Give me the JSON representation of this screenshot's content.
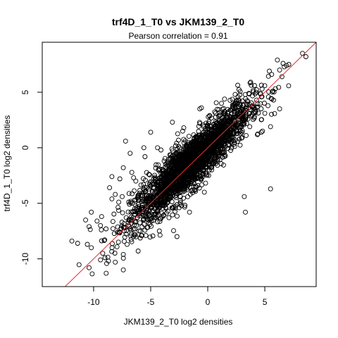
{
  "chart_data": {
    "type": "scatter",
    "title": "trf4D_1_T0 vs JKM139_2_T0",
    "subtitle": "Pearson correlation =  0.91",
    "xlabel": "JKM139_2_T0 log2 densities",
    "ylabel": "trf4D_1_T0 log2 densities",
    "xlim": [
      -14.5,
      9.5
    ],
    "ylim": [
      -12.5,
      9.5
    ],
    "x_ticks": [
      -10,
      -5,
      0,
      5
    ],
    "y_ticks": [
      -10,
      -5,
      0,
      5
    ],
    "x_tick_labels": [
      "-10",
      "-5",
      "0",
      "5"
    ],
    "y_tick_labels": [
      "-10",
      "-5",
      "0",
      "5"
    ],
    "grid": false,
    "legend": "none",
    "reference_line": {
      "slope": 1,
      "intercept": 0,
      "color": "#e03030"
    },
    "point_color": "#000000",
    "points": {
      "x": [
        8.3,
        8.6,
        6.1,
        6.6,
        7.1,
        6.9,
        6.3,
        5.4,
        5.6,
        6.5,
        4.1,
        3.6,
        3.6,
        4.2,
        5.0,
        5.5,
        4.7,
        6.3,
        2.4,
        1.2,
        -0.7,
        -2.2,
        -2.1,
        -3.1,
        -5.0,
        -7.2,
        -5.6,
        -4.4,
        -4.1,
        -2.8,
        -3.7,
        -6.8,
        -7.4,
        -5.5,
        -4.1,
        -8.4,
        -7.7,
        -8.6,
        -6.3,
        -6.5,
        -6.3,
        -6.6,
        -7.5,
        -7.8,
        -10.2,
        -9.3,
        -10.7,
        -11.9,
        -11.4,
        -10.2,
        -9.2,
        -9.0,
        -9.4,
        -10.4,
        -8.9,
        -7.4,
        -8.1,
        -6.1,
        -6.5,
        -9.4,
        -3.4,
        -1.6,
        -0.3,
        4.8,
        3.3,
        3.2,
        5.5,
        -9.7,
        -10.4,
        -8.4,
        -8.1,
        -7.2,
        -2.7,
        -8.7,
        -7.4
      ],
      "y": [
        8.5,
        8.2,
        7.9,
        7.6,
        7.5,
        7.4,
        7.0,
        6.9,
        6.6,
        6.4,
        5.6,
        4.9,
        3.6,
        3.2,
        3.1,
        1.9,
        1.4,
        3.5,
        4.8,
        4.0,
        3.5,
        1.5,
        1.8,
        2.3,
        1.4,
        0.6,
        0.0,
        0.0,
        -0.2,
        -0.5,
        -1.5,
        -0.5,
        -1.8,
        -0.8,
        -2.3,
        -2.6,
        -2.8,
        -3.6,
        -3.0,
        -2.7,
        -4.7,
        -5.0,
        -4.4,
        -4.9,
        -5.8,
        -6.2,
        -6.5,
        -8.4,
        -8.6,
        -9.0,
        -9.5,
        -9.9,
        -10.1,
        -10.8,
        -11.3,
        -11.0,
        -10.3,
        -9.3,
        -8.0,
        -7.0,
        -6.3,
        -5.8,
        -4.0,
        1.5,
        -5.8,
        -4.4,
        -3.7,
        -6.6,
        -7.1,
        -4.6,
        -4.2,
        -7.2,
        -8.0,
        -10.2,
        -9.6
      ]
    },
    "cloud": {
      "count": 2400,
      "x_mean": -1.5,
      "x_sd": 2.6,
      "slope": 0.95,
      "noise_sd": 1.15
    }
  }
}
